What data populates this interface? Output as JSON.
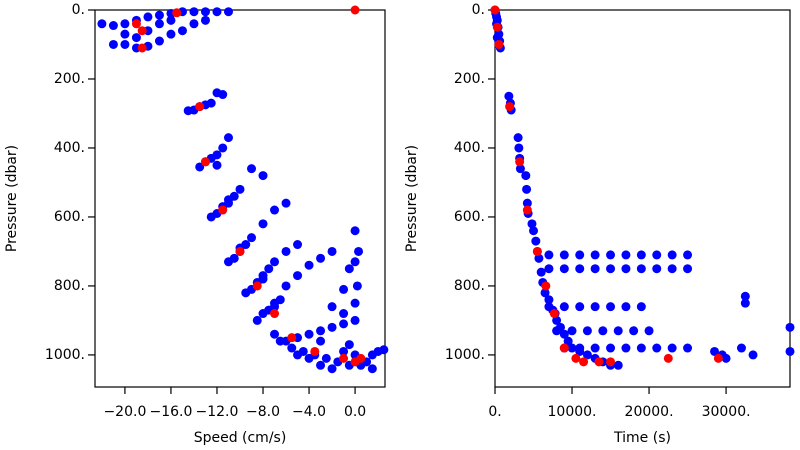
{
  "chart_data": [
    {
      "type": "scatter",
      "xlabel": "Speed (cm/s)",
      "ylabel": "Pressure (dbar)",
      "xlim": [
        -22.6,
        2.6
      ],
      "ylim": [
        1093,
        0
      ],
      "xticks": [
        {
          "value": -20,
          "label": "−20.0"
        },
        {
          "value": -16,
          "label": "−16.0"
        },
        {
          "value": -12,
          "label": "−12.0"
        },
        {
          "value": -8,
          "label": "−8.0"
        },
        {
          "value": -4,
          "label": "−4.0"
        },
        {
          "value": 0,
          "label": "0.0"
        }
      ],
      "yticks": [
        {
          "value": 0,
          "label": "0."
        },
        {
          "value": 200,
          "label": "200."
        },
        {
          "value": 400,
          "label": "400."
        },
        {
          "value": 600,
          "label": "600."
        },
        {
          "value": 800,
          "label": "800."
        },
        {
          "value": 1000,
          "label": "1000."
        }
      ],
      "series": [
        {
          "color": "#0000ff",
          "x": [
            -22,
            -21,
            -20,
            -19,
            -18,
            -17,
            -16,
            -15,
            -14,
            -13,
            -12,
            -11,
            -20,
            -19,
            -18,
            -17,
            -16,
            -15,
            -14,
            -13,
            -20,
            -18,
            -17,
            -19,
            -21,
            -16,
            -14,
            -13.5,
            -13,
            -12.5,
            -14.5,
            -12,
            -11.5,
            -13,
            -12.5,
            -12,
            -11.5,
            -11,
            -12,
            -13.5,
            -12,
            -11.5,
            -11,
            -10.5,
            -10,
            -9,
            -8,
            -12.5,
            -11,
            -10.5,
            -10,
            -9.5,
            -9,
            -8,
            -7,
            -6,
            -11,
            -10,
            -9,
            -8.5,
            -8,
            -7.5,
            -7,
            -6,
            -5,
            -9.5,
            -8,
            -8,
            -7.5,
            -7,
            -6.5,
            -6,
            -5,
            -4,
            -3,
            -2,
            -8.5,
            -7,
            -6,
            -5,
            -4,
            -3,
            -2,
            -1,
            0,
            -5.5,
            -4.5,
            -3.5,
            -2.5,
            -1.5,
            -0.5,
            0.5,
            1,
            1.5,
            2,
            -4,
            -3,
            -2,
            0,
            -6.5,
            -7,
            -1,
            -0.5,
            0,
            0.2,
            0,
            0.3,
            -0.5,
            0,
            -1,
            -2,
            -1,
            1.5,
            2.5,
            -3,
            -5
          ],
          "values": [
            40,
            45,
            40,
            30,
            20,
            15,
            10,
            5,
            5,
            5,
            5,
            5,
            100,
            110,
            105,
            90,
            70,
            60,
            40,
            30,
            70,
            60,
            40,
            80,
            100,
            30,
            290,
            280,
            275,
            270,
            292,
            240,
            245,
            440,
            430,
            420,
            400,
            370,
            450,
            455,
            590,
            570,
            550,
            540,
            520,
            460,
            480,
            600,
            560,
            720,
            700,
            680,
            660,
            620,
            580,
            560,
            730,
            690,
            810,
            790,
            770,
            750,
            730,
            700,
            680,
            820,
            780,
            880,
            870,
            850,
            840,
            800,
            770,
            740,
            720,
            700,
            900,
            860,
            960,
            950,
            940,
            930,
            920,
            910,
            900,
            980,
            990,
            1000,
            1010,
            1020,
            1030,
            1030,
            1020,
            1000,
            990,
            1010,
            1030,
            1040,
            1000,
            960,
            940,
            990,
            970,
            850,
            800,
            730,
            700,
            750,
            640,
            810,
            860,
            880,
            1040,
            985,
            960,
            1000
          ]
        },
        {
          "color": "#ff0000",
          "x": [
            0,
            -15.5,
            -18.5,
            -19,
            -18.5,
            -13.5,
            -13,
            -11.5,
            -10,
            -8.5,
            -7,
            -5.5,
            -3.5,
            -1,
            0,
            0.5
          ],
          "values": [
            0,
            8,
            60,
            40,
            110,
            280,
            440,
            580,
            700,
            800,
            880,
            950,
            990,
            1010,
            1020,
            1010
          ]
        }
      ]
    },
    {
      "type": "scatter",
      "xlabel": "Time (s)",
      "ylabel": "Pressure (dbar)",
      "xlim": [
        0,
        38300
      ],
      "ylim": [
        1093,
        0
      ],
      "xticks": [
        {
          "value": 0,
          "label": "0."
        },
        {
          "value": 10000,
          "label": "10000."
        },
        {
          "value": 20000,
          "label": "20000."
        },
        {
          "value": 30000,
          "label": "30000."
        }
      ],
      "yticks": [
        {
          "value": 0,
          "label": "0."
        },
        {
          "value": 200,
          "label": "200."
        },
        {
          "value": 400,
          "label": "400."
        },
        {
          "value": 600,
          "label": "600."
        },
        {
          "value": 800,
          "label": "800."
        },
        {
          "value": 1000,
          "label": "1000."
        }
      ],
      "series": [
        {
          "color": "#0000ff",
          "x": [
            0,
            100,
            200,
            300,
            400,
            500,
            600,
            700,
            300,
            500,
            200,
            1800,
            2000,
            2100,
            3000,
            3100,
            3200,
            3300,
            4000,
            4100,
            4200,
            4300,
            4800,
            5000,
            5300,
            5500,
            5700,
            6000,
            6200,
            6500,
            7000,
            7500,
            7800,
            8000,
            8500,
            9000,
            9500,
            10000,
            11000,
            12000,
            13000,
            14000,
            15000,
            16000,
            7000,
            9000,
            11000,
            13000,
            15000,
            17000,
            19000,
            21000,
            23000,
            25000,
            7000,
            9000,
            11000,
            13000,
            15000,
            17000,
            19000,
            21000,
            23000,
            25000,
            7000,
            9000,
            11000,
            13000,
            15000,
            17000,
            19000,
            8000,
            10000,
            12000,
            14000,
            16000,
            18000,
            20000,
            9000,
            11000,
            13000,
            15000,
            17000,
            19000,
            21000,
            23000,
            25000,
            28500,
            29500,
            30000,
            32000,
            33500,
            32500,
            32500,
            38300,
            38300
          ],
          "values": [
            0,
            10,
            20,
            30,
            50,
            70,
            90,
            110,
            80,
            100,
            40,
            250,
            270,
            290,
            370,
            400,
            430,
            460,
            480,
            520,
            560,
            590,
            620,
            640,
            670,
            700,
            720,
            760,
            790,
            820,
            840,
            870,
            880,
            900,
            920,
            940,
            960,
            980,
            990,
            1000,
            1010,
            1020,
            1030,
            1030,
            710,
            710,
            710,
            710,
            710,
            710,
            710,
            710,
            710,
            710,
            750,
            750,
            750,
            750,
            750,
            750,
            750,
            750,
            750,
            750,
            860,
            860,
            860,
            860,
            860,
            860,
            860,
            930,
            930,
            930,
            930,
            930,
            930,
            930,
            980,
            980,
            980,
            980,
            980,
            980,
            980,
            980,
            980,
            990,
            1000,
            1010,
            980,
            1000,
            830,
            850,
            920,
            990
          ]
        },
        {
          "color": "#ff0000",
          "x": [
            0,
            300,
            500,
            1900,
            3200,
            4200,
            5500,
            6600,
            7700,
            9000,
            10500,
            11500,
            13500,
            15000,
            22500,
            29000
          ],
          "values": [
            0,
            50,
            100,
            280,
            440,
            580,
            700,
            800,
            880,
            980,
            1010,
            1020,
            1020,
            1020,
            1010,
            1010
          ]
        }
      ]
    }
  ]
}
